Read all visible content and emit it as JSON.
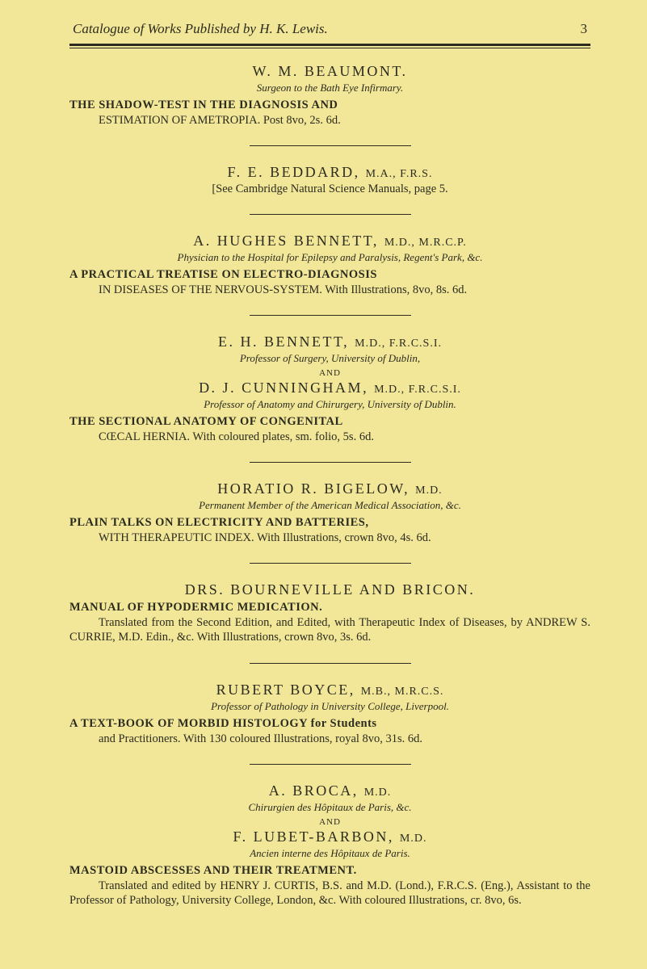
{
  "page": {
    "running_title": "Catalogue of Works Published by H. K. Lewis.",
    "page_number": "3"
  },
  "entries": [
    {
      "author": "W. M. BEAUMONT.",
      "subtitle": "Surgeon to the Bath Eye Infirmary.",
      "work_title": "THE SHADOW-TEST IN THE DIAGNOSIS AND",
      "work_rest": "ESTIMATION OF AMETROPIA. Post 8vo, 2s. 6d."
    },
    {
      "author_pre": "F. E. BEDDARD, ",
      "author_caps": "M.A., F.R.S.",
      "ref": "[See Cambridge Natural Science Manuals, page 5."
    },
    {
      "author_pre": "A. HUGHES BENNETT, ",
      "author_caps": "M.D., M.R.C.P.",
      "subtitle": "Physician to the Hospital for Epilepsy and Paralysis, Regent's Park, &c.",
      "work_title": "A PRACTICAL TREATISE ON ELECTRO-DIAGNOSIS",
      "work_rest": "IN DISEASES OF THE NERVOUS-SYSTEM. With Illustrations, 8vo, 8s. 6d."
    },
    {
      "author1_pre": "E. H. BENNETT, ",
      "author1_caps": "M.D., F.R.C.S.I.",
      "subtitle1": "Professor of Surgery, University of Dublin,",
      "and": "AND",
      "author2_pre": "D. J. CUNNINGHAM, ",
      "author2_caps": "M.D., F.R.C.S.I.",
      "subtitle2": "Professor of Anatomy and Chirurgery, University of Dublin.",
      "work_title": "THE SECTIONAL ANATOMY OF CONGENITAL",
      "work_rest": "CŒCAL HERNIA. With coloured plates, sm. folio, 5s. 6d."
    },
    {
      "author_pre": "HORATIO R. BIGELOW, ",
      "author_caps": "M.D.",
      "subtitle": "Permanent Member of the American Medical Association, &c.",
      "work_title": "PLAIN TALKS ON ELECTRICITY AND BATTERIES,",
      "work_rest": "WITH THERAPEUTIC INDEX. With Illustrations, crown 8vo, 4s. 6d."
    },
    {
      "author": "DRS. BOURNEVILLE AND BRICON.",
      "work_title": "MANUAL OF HYPODERMIC MEDICATION.",
      "work_rest": "Translated from the Second Edition, and Edited, with Therapeutic Index of Diseases, by ANDREW S. CURRIE, M.D. Edin., &c. With Illustrations, crown 8vo, 3s. 6d."
    },
    {
      "author_pre": "RUBERT BOYCE, ",
      "author_caps": "M.B., M.R.C.S.",
      "subtitle": "Professor of Pathology in University College, Liverpool.",
      "work_title": "A TEXT-BOOK OF MORBID HISTOLOGY for Students",
      "work_rest": "and Practitioners. With 130 coloured Illustrations, royal 8vo, 31s. 6d."
    },
    {
      "author1_pre": "A. BROCA, ",
      "author1_caps": "M.D.",
      "subtitle1": "Chirurgien des Hôpitaux de Paris, &c.",
      "and": "AND",
      "author2_pre": "F. LUBET-BARBON, ",
      "author2_caps": "M.D.",
      "subtitle2": "Ancien interne des Hôpitaux de Paris.",
      "work_title": "MASTOID ABSCESSES AND THEIR TREATMENT.",
      "work_rest": "Translated and edited by HENRY J. CURTIS, B.S. and M.D. (Lond.), F.R.C.S. (Eng.), Assistant to the Professor of Pathology, University College, London, &c. With coloured Illustrations, cr. 8vo, 6s."
    }
  ]
}
